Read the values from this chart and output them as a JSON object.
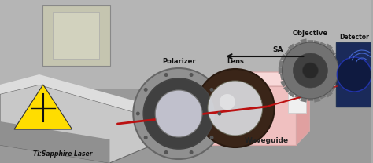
{
  "bg_color": "#aaaaaa",
  "bg_top": "#b8b8b8",
  "bg_bottom": "#888888",
  "labels": {
    "laser": "Ti:Sapphire Laser",
    "polarizer": "Polarizer",
    "lens": "Lens",
    "sa": "SA",
    "objective": "Objective",
    "detector": "Detector",
    "waveguide": "Waveguide"
  },
  "beam_color": "#bb1111",
  "waveguide_front_color": "#f0c0c0",
  "waveguide_side_color": "#e8a8a8",
  "waveguide_top_color": "#f8d8d8",
  "laser_body_color": "#c0c0c0",
  "laser_shadow": "#909090",
  "inset_outer": "#ccccbb",
  "inset_inner": "#d8d8c8",
  "pol_outer": "#909090",
  "pol_mid": "#444444",
  "pol_inner": "#b0b0b8",
  "lens_outer": "#3a2a20",
  "lens_inner": "#f0f0ff",
  "obj_gray": "#707070",
  "det_blue": "#1a2a60",
  "det_circle": "#2233bb"
}
